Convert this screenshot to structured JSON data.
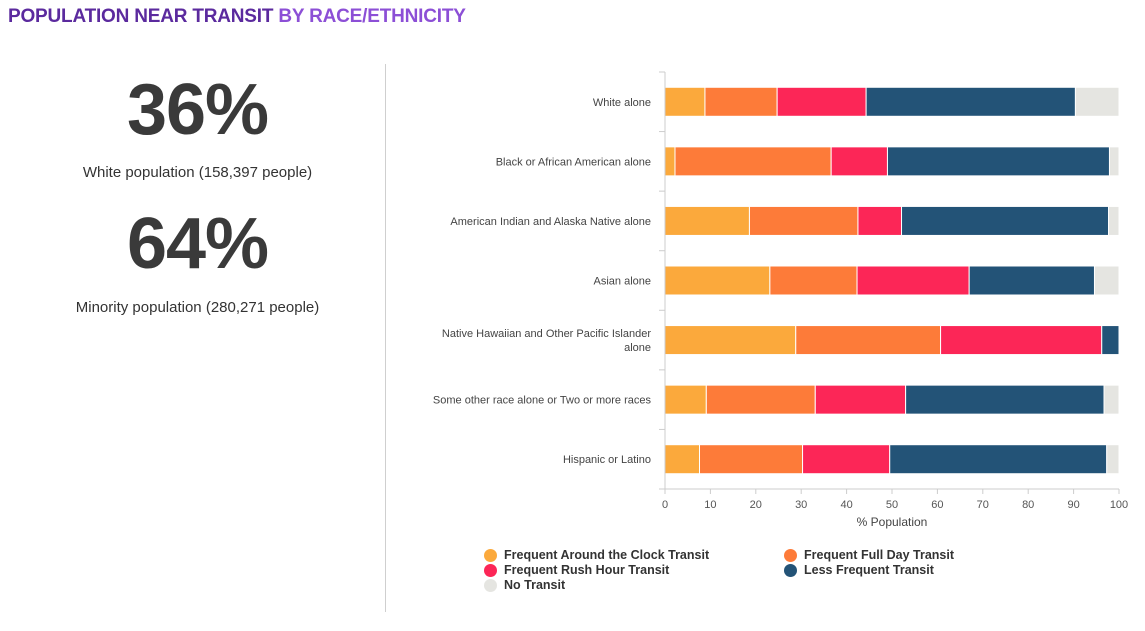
{
  "header": {
    "title_main": "POPULATION NEAR TRANSIT",
    "title_accent": "BY RACE/ETHNICITY"
  },
  "stats": [
    {
      "value": "36%",
      "label": "White population (158,397 people)"
    },
    {
      "value": "64%",
      "label": "Minority population (280,271 people)"
    }
  ],
  "colors": {
    "title_main": "#5b2a9e",
    "title_accent": "#8c4fd6",
    "Frequent Around the Clock Transit": "#fba93c",
    "Frequent Full Day Transit": "#fd7b39",
    "Frequent Rush Hour Transit": "#fc2657",
    "Less Frequent Transit": "#235377",
    "No Transit": "#e5e5e1"
  },
  "chart_data": {
    "type": "bar",
    "orientation": "horizontal",
    "stacked": true,
    "categories": [
      "White alone",
      "Black or African American alone",
      "American Indian and Alaska Native alone",
      "Asian alone",
      "Native Hawaiian and Other Pacific Islander alone",
      "Some other race alone or Two or more races",
      "Hispanic or Latino"
    ],
    "series": [
      {
        "name": "Frequent Around the Clock Transit",
        "values": [
          8.8,
          2.2,
          18.6,
          23.1,
          28.8,
          9.1,
          7.6
        ]
      },
      {
        "name": "Frequent Full Day Transit",
        "values": [
          15.9,
          34.4,
          23.9,
          19.2,
          31.9,
          24.0,
          22.7
        ]
      },
      {
        "name": "Frequent Rush Hour Transit",
        "values": [
          19.6,
          12.4,
          9.6,
          24.7,
          35.5,
          19.9,
          19.2
        ]
      },
      {
        "name": "Less Frequent Transit",
        "values": [
          46.1,
          48.9,
          45.6,
          27.6,
          3.8,
          43.7,
          47.8
        ]
      },
      {
        "name": "No Transit",
        "values": [
          9.6,
          2.1,
          2.3,
          5.4,
          0,
          3.3,
          2.7
        ]
      }
    ],
    "xlabel": "% Population",
    "ylabel": "",
    "xlim": [
      0,
      100
    ],
    "xticks": [
      0,
      10,
      20,
      30,
      40,
      50,
      60,
      70,
      80,
      90,
      100
    ],
    "grid": false,
    "legend_position": "bottom"
  }
}
